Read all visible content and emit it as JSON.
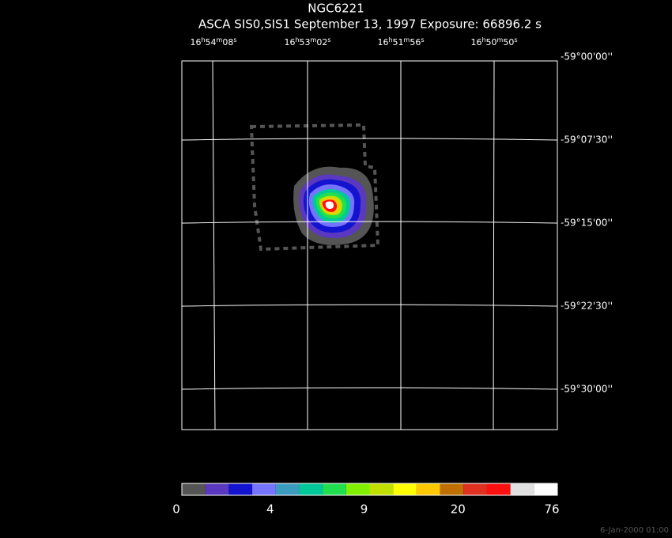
{
  "title": "NGC6221",
  "subtitle": "ASCA SIS0,SIS1 September 13, 1997 Exposure: 66896.2 s",
  "ra_labels": [
    [
      "16",
      "h",
      "54",
      "m",
      "08",
      "s"
    ],
    [
      "16",
      "h",
      "53",
      "m",
      "02",
      "s"
    ],
    [
      "16",
      "h",
      "51",
      "m",
      "56",
      "s"
    ],
    [
      "16",
      "h",
      "50",
      "m",
      "50",
      "s"
    ]
  ],
  "dec_labels": [
    "-59°00'00''",
    "-59°07'30''",
    "-59°15'00''",
    "-59°22'30''",
    "-59°30'00''"
  ],
  "colorbar": {
    "colors": [
      "#555555",
      "#5a38c0",
      "#1414d0",
      "#7474ff",
      "#3c9cc0",
      "#00c898",
      "#20e050",
      "#80f000",
      "#c0e000",
      "#ffff00",
      "#ffc800",
      "#c07000",
      "#e03020",
      "#ff1010",
      "#e0e0e0",
      "#ffffff"
    ],
    "labels": [
      "0",
      "4",
      "9",
      "20",
      "76"
    ]
  },
  "footer": "6-Jan-2000 01:00"
}
